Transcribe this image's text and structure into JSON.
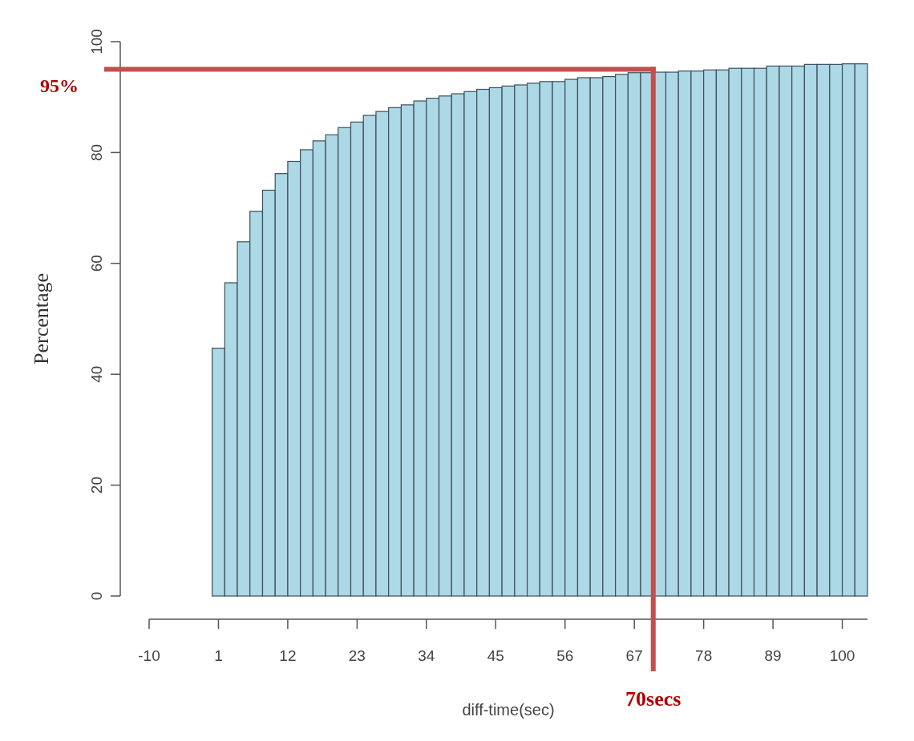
{
  "chart_data": {
    "type": "histogram",
    "xlabel": "diff-time(sec)",
    "ylabel": "Percentage",
    "bins": [
      0,
      2,
      4,
      6,
      8,
      10,
      12,
      14,
      16,
      18,
      20,
      22,
      24,
      26,
      28,
      30,
      32,
      34,
      36,
      38,
      40,
      42,
      44,
      46,
      48,
      50,
      52,
      54,
      56,
      58,
      60,
      62,
      64,
      66,
      68,
      70,
      72,
      74,
      76,
      78,
      80,
      82,
      84,
      86,
      88,
      90,
      92,
      94,
      96,
      98,
      100,
      102,
      104
    ],
    "values": [
      44.7,
      56.5,
      63.9,
      69.4,
      73.2,
      76.2,
      78.4,
      80.5,
      82.1,
      83.2,
      84.5,
      85.5,
      86.7,
      87.4,
      88.1,
      88.6,
      89.3,
      89.8,
      90.2,
      90.6,
      91.0,
      91.4,
      91.7,
      92.0,
      92.2,
      92.5,
      92.8,
      92.8,
      93.2,
      93.5,
      93.5,
      93.7,
      94.1,
      94.4,
      94.4,
      94.5,
      94.5,
      94.7,
      94.7,
      94.9,
      94.9,
      95.2,
      95.2,
      95.2,
      95.6,
      95.6,
      95.6,
      95.9,
      95.9,
      95.9,
      96.0,
      96.0
    ],
    "color": "#add8e6",
    "xlim": [
      -10,
      104
    ],
    "xticks": [
      -10,
      1,
      12,
      23,
      34,
      45,
      56,
      67,
      78,
      89,
      100
    ],
    "ylim": [
      0,
      100
    ],
    "yticks": [
      0,
      20,
      40,
      60,
      80,
      100
    ],
    "ref_lines": [
      {
        "axis": "y",
        "value": 95,
        "label": "95%",
        "color": "#c0504d"
      },
      {
        "axis": "x",
        "value": 70,
        "label": "70secs",
        "color": "#c0504d"
      }
    ]
  }
}
